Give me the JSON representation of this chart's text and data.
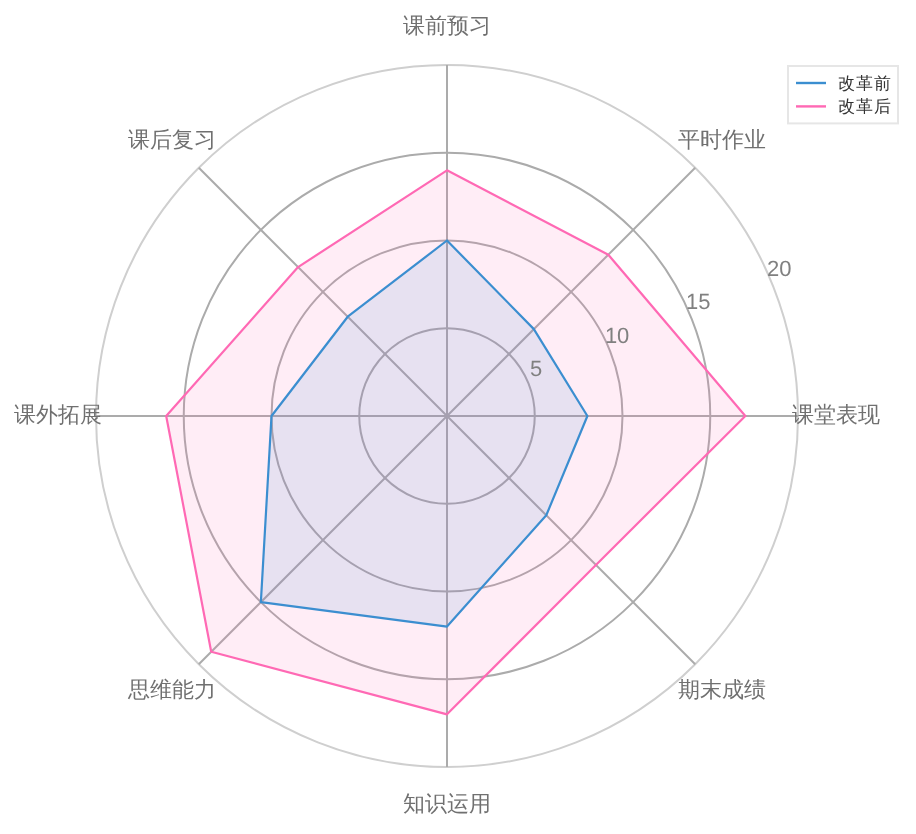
{
  "chart_data": {
    "type": "radar",
    "categories": [
      "课前预习",
      "平时作业",
      "课堂表现",
      "期末成绩",
      "知识运用",
      "思维能力",
      "课外拓展",
      "课后复习"
    ],
    "series": [
      {
        "name": "改革前",
        "color": "#3b8ed0",
        "values": [
          10,
          7,
          8,
          8,
          12,
          15,
          10,
          8
        ]
      },
      {
        "name": "改革后",
        "color": "#ff69b4",
        "values": [
          14,
          13,
          17,
          12,
          17,
          19,
          16,
          12
        ]
      }
    ],
    "ylim": [
      0,
      20
    ],
    "yticks": [
      5,
      10,
      15,
      20
    ],
    "grid": true,
    "legend": "top right"
  }
}
